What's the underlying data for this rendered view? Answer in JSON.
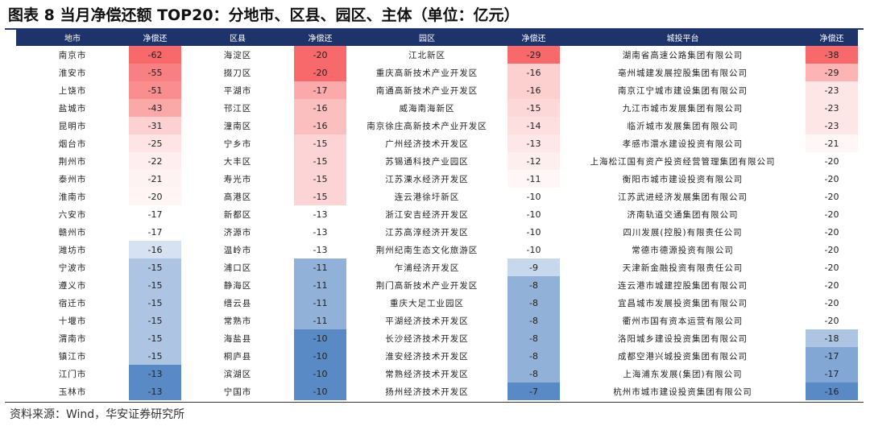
{
  "title": "图表 8 当月净偿还额 TOP20：分地市、区县、园区、主体（单位：亿元）",
  "headers": [
    "地市",
    "净偿还",
    "区县",
    "净偿还",
    "园区",
    "净偿还",
    "城投平台",
    "净偿还"
  ],
  "rows": [
    [
      {
        "name": "南京市",
        "value": -62
      },
      {
        "name": "海淀区",
        "value": -20
      },
      {
        "name": "江北新区",
        "value": -29
      },
      {
        "name": "湖南省高速公路集团有限公司",
        "value": -38
      }
    ],
    [
      {
        "name": "淮安市",
        "value": -55
      },
      {
        "name": "掇刀区",
        "value": -20
      },
      {
        "name": "重庆高新技术产业开发区",
        "value": -16
      },
      {
        "name": "亳州城建发展控股集团有限公司",
        "value": -29
      }
    ],
    [
      {
        "name": "上饶市",
        "value": -51
      },
      {
        "name": "平湖市",
        "value": -17
      },
      {
        "name": "南通高新技术产业开发区",
        "value": -16
      },
      {
        "name": "南京江宁城市建设集团有限公司",
        "value": -23
      }
    ],
    [
      {
        "name": "盐城市",
        "value": -43
      },
      {
        "name": "邗江区",
        "value": -16
      },
      {
        "name": "威海南海新区",
        "value": -15
      },
      {
        "name": "九江市城市发展集团有限公司",
        "value": -23
      }
    ],
    [
      {
        "name": "昆明市",
        "value": -31
      },
      {
        "name": "潼南区",
        "value": -16
      },
      {
        "name": "南京徐庄高新技术产业开发区",
        "value": -14
      },
      {
        "name": "临沂城市发展集团有限公司",
        "value": -23
      }
    ],
    [
      {
        "name": "烟台市",
        "value": -25
      },
      {
        "name": "宁乡市",
        "value": -15
      },
      {
        "name": "广州经济技术开发区",
        "value": -13
      },
      {
        "name": "孝感市澴水建设投资有限公司",
        "value": -21
      }
    ],
    [
      {
        "name": "荆州市",
        "value": -22
      },
      {
        "name": "大丰区",
        "value": -15
      },
      {
        "name": "苏锡通科技产业园区",
        "value": -12
      },
      {
        "name": "上海松江国有资产投资经营管理集团有限公司",
        "value": -20
      }
    ],
    [
      {
        "name": "泰州市",
        "value": -21
      },
      {
        "name": "寿光市",
        "value": -15
      },
      {
        "name": "江苏溧水经济开发区",
        "value": -11
      },
      {
        "name": "衡阳市城市建设投资有限公司",
        "value": -20
      }
    ],
    [
      {
        "name": "淮南市",
        "value": -20
      },
      {
        "name": "高港区",
        "value": -15
      },
      {
        "name": "连云港徐圩新区",
        "value": -10
      },
      {
        "name": "江苏武进经济发展集团有限公司",
        "value": -20
      }
    ],
    [
      {
        "name": "六安市",
        "value": -17
      },
      {
        "name": "新都区",
        "value": -13
      },
      {
        "name": "浙江安吉经济开发区",
        "value": -10
      },
      {
        "name": "济南轨道交通集团有限公司",
        "value": -20
      }
    ],
    [
      {
        "name": "赣州市",
        "value": -17
      },
      {
        "name": "济源市",
        "value": -13
      },
      {
        "name": "江苏高淳经济开发区",
        "value": -10
      },
      {
        "name": "四川发展(控股)有限责任公司",
        "value": -20
      }
    ],
    [
      {
        "name": "潍坊市",
        "value": -16
      },
      {
        "name": "温岭市",
        "value": -13
      },
      {
        "name": "荆州纪南生态文化旅游区",
        "value": -10
      },
      {
        "name": "常德市德源投资有限公司",
        "value": -20
      }
    ],
    [
      {
        "name": "宁波市",
        "value": -15
      },
      {
        "name": "浦口区",
        "value": -11
      },
      {
        "name": "乍浦经济开发区",
        "value": -9
      },
      {
        "name": "天津新金融投资有限责任公司",
        "value": -20
      }
    ],
    [
      {
        "name": "遵义市",
        "value": -15
      },
      {
        "name": "静海区",
        "value": -11
      },
      {
        "name": "荆门高新技术产业开发区",
        "value": -8
      },
      {
        "name": "连云港市城建控股集团有限公司",
        "value": -20
      }
    ],
    [
      {
        "name": "宿迁市",
        "value": -15
      },
      {
        "name": "缙云县",
        "value": -11
      },
      {
        "name": "重庆大足工业园区",
        "value": -8
      },
      {
        "name": "宜昌城市发展投资集团有限公司",
        "value": -20
      }
    ],
    [
      {
        "name": "十堰市",
        "value": -15
      },
      {
        "name": "常熟市",
        "value": -11
      },
      {
        "name": "平湖经济技术开发区",
        "value": -8
      },
      {
        "name": "衢州市国有资本运营有限公司",
        "value": -20
      }
    ],
    [
      {
        "name": "渭南市",
        "value": -15
      },
      {
        "name": "海盐县",
        "value": -10
      },
      {
        "name": "长沙经济技术开发区",
        "value": -8
      },
      {
        "name": "洛阳城乡建设投资集团有限公司",
        "value": -18
      }
    ],
    [
      {
        "name": "镇江市",
        "value": -15
      },
      {
        "name": "桐庐县",
        "value": -10
      },
      {
        "name": "淮安经济技术开发区",
        "value": -8
      },
      {
        "name": "成都空港兴城投资集团有限公司",
        "value": -17
      }
    ],
    [
      {
        "name": "江门市",
        "value": -13
      },
      {
        "name": "滨湖区",
        "value": -10
      },
      {
        "name": "常熟经济技术开发区",
        "value": -8
      },
      {
        "name": "上海浦东发展(集团)有限公司",
        "value": -17
      }
    ],
    [
      {
        "name": "玉林市",
        "value": -13
      },
      {
        "name": "宁国市",
        "value": -10
      },
      {
        "name": "扬州经济技术开发区",
        "value": -7
      },
      {
        "name": "杭州市城市建设投资集团有限公司",
        "value": -16
      }
    ]
  ],
  "colors": {
    "header_bg": "#1e3369",
    "header_text": "#ffffff",
    "scale_low": "#f8696b",
    "scale_mid": "#ffffff",
    "scale_high": "#5a8ac6"
  },
  "source": "资料来源：Wind，华安证券研究所"
}
